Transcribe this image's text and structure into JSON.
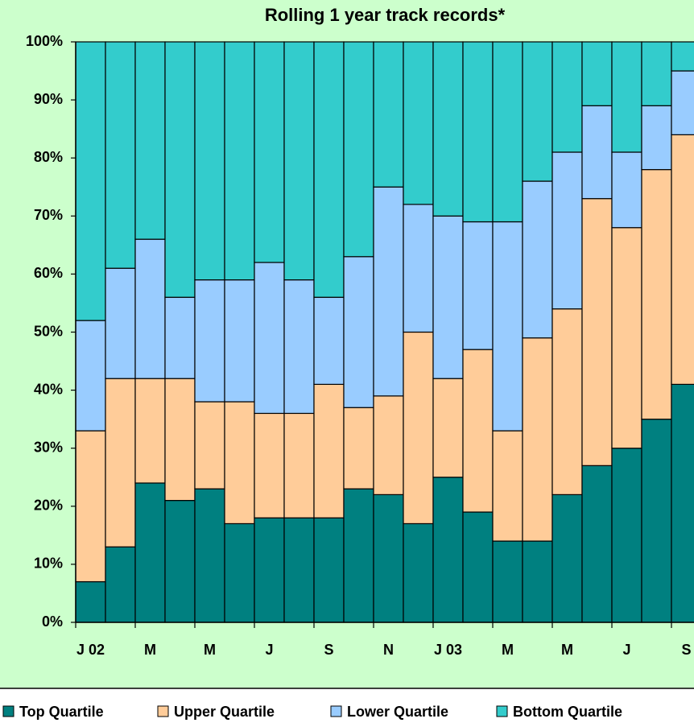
{
  "chart_data": {
    "type": "stacked_bar",
    "title": "Rolling 1 year track records*",
    "categories": [
      "J 02",
      null,
      "M",
      null,
      "M",
      null,
      "J",
      null,
      "S",
      null,
      "N",
      null,
      "J 03",
      null,
      "M",
      null,
      "M",
      null,
      "J",
      null,
      "S"
    ],
    "series": [
      {
        "name": "Top Quartile",
        "color": "#008080",
        "values": [
          7,
          13,
          24,
          21,
          23,
          17,
          18,
          18,
          18,
          23,
          22,
          17,
          25,
          19,
          14,
          14,
          22,
          27,
          30,
          35,
          41
        ]
      },
      {
        "name": "Upper Quartile",
        "color": "#ffcc99",
        "values": [
          26,
          29,
          18,
          21,
          15,
          21,
          18,
          18,
          23,
          14,
          17,
          33,
          17,
          28,
          19,
          35,
          32,
          46,
          38,
          43,
          43
        ]
      },
      {
        "name": "Lower Quartile",
        "color": "#99ccff",
        "values": [
          19,
          19,
          24,
          14,
          21,
          21,
          26,
          23,
          15,
          26,
          36,
          22,
          28,
          22,
          36,
          27,
          27,
          16,
          13,
          11,
          11
        ]
      },
      {
        "name": "Bottom Quartile",
        "color": "#33cccc",
        "values": [
          48,
          39,
          34,
          44,
          41,
          41,
          38,
          41,
          44,
          37,
          25,
          28,
          30,
          31,
          31,
          24,
          19,
          11,
          19,
          11,
          5
        ]
      }
    ],
    "ylim": [
      0,
      100
    ],
    "yticks": [
      {
        "value": 0,
        "label": "0%"
      },
      {
        "value": 10,
        "label": "10%"
      },
      {
        "value": 20,
        "label": "20%"
      },
      {
        "value": 30,
        "label": "30%"
      },
      {
        "value": 40,
        "label": "40%"
      },
      {
        "value": 50,
        "label": "50%"
      },
      {
        "value": 60,
        "label": "60%"
      },
      {
        "value": 70,
        "label": "70%"
      },
      {
        "value": 80,
        "label": "80%"
      },
      {
        "value": 90,
        "label": "90%"
      },
      {
        "value": 100,
        "label": "100%"
      }
    ],
    "legend": "bottom"
  }
}
